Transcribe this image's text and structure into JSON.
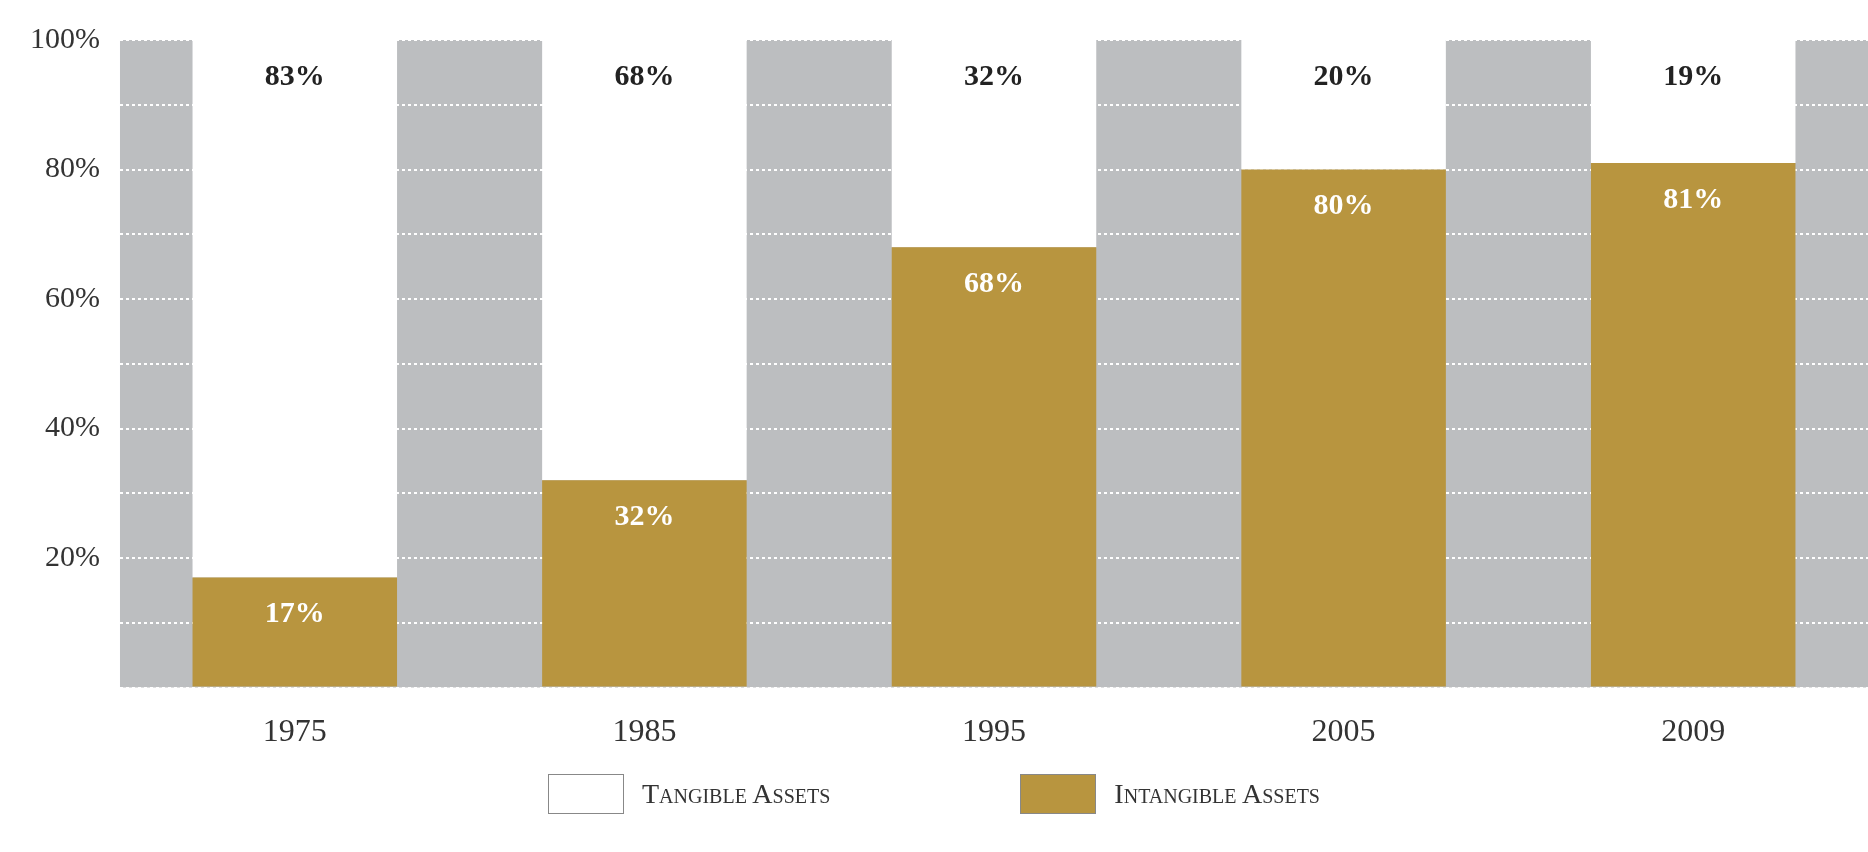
{
  "chart_data": {
    "type": "bar",
    "stacked": true,
    "categories": [
      "1975",
      "1985",
      "1995",
      "2005",
      "2009"
    ],
    "series": [
      {
        "name": "Intangible Assets",
        "color": "#b8953f",
        "values": [
          17,
          32,
          68,
          80,
          81
        ],
        "value_labels": [
          "17%",
          "32%",
          "68%",
          "80%",
          "81%"
        ]
      },
      {
        "name": "Tangible Assets",
        "color": "#ffffff",
        "values": [
          83,
          68,
          32,
          20,
          19
        ],
        "value_labels": [
          "83%",
          "68%",
          "32%",
          "20%",
          "19%"
        ]
      }
    ],
    "ylim": [
      0,
      100
    ],
    "yticks": [
      {
        "value": 0,
        "label": null
      },
      {
        "value": 10,
        "label": null
      },
      {
        "value": 20,
        "label": "20%"
      },
      {
        "value": 30,
        "label": null
      },
      {
        "value": 40,
        "label": "40%"
      },
      {
        "value": 50,
        "label": null
      },
      {
        "value": 60,
        "label": "60%"
      },
      {
        "value": 70,
        "label": null
      },
      {
        "value": 80,
        "label": "80%"
      },
      {
        "value": 90,
        "label": null
      },
      {
        "value": 100,
        "label": "100%"
      }
    ],
    "grid": "y",
    "legend": "bottom"
  }
}
